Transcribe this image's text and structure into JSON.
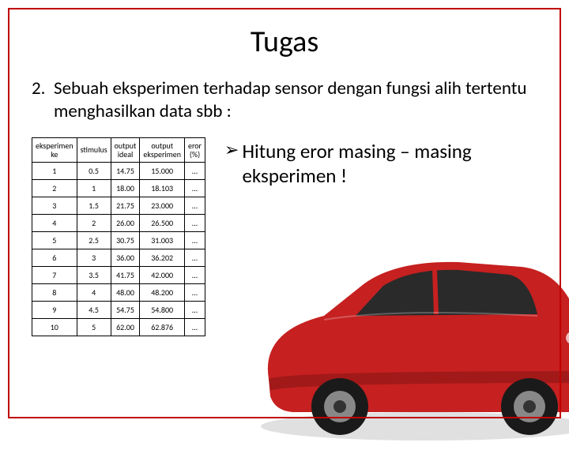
{
  "title": "Tugas",
  "question_number": "2.",
  "question_text": "Sebuah eksperimen terhadap sensor dengan fungsi alih tertentu menghasilkan data sbb :",
  "instruction": "Hitung eror masing – masing eksperimen !",
  "table": {
    "columns": [
      "eksperimen ke",
      "stimulus",
      "output ideal",
      "output eksperimen",
      "eror (%)"
    ],
    "rows": [
      [
        "1",
        "0.5",
        "14.75",
        "15.000",
        "…"
      ],
      [
        "2",
        "1",
        "18.00",
        "18.103",
        "…"
      ],
      [
        "3",
        "1.5",
        "21.75",
        "23.000",
        "…"
      ],
      [
        "4",
        "2",
        "26.00",
        "26.500",
        "…"
      ],
      [
        "5",
        "2.5",
        "30.75",
        "31.003",
        "…"
      ],
      [
        "6",
        "3",
        "36.00",
        "36.202",
        "…"
      ],
      [
        "7",
        "3.5",
        "41.75",
        "42.000",
        "…"
      ],
      [
        "8",
        "4",
        "48.00",
        "48.200",
        "…"
      ],
      [
        "9",
        "4.5",
        "54.75",
        "54.800",
        "…"
      ],
      [
        "10",
        "5",
        "62.00",
        "62.876",
        "…"
      ]
    ]
  },
  "colors": {
    "frame_border": "#c00000",
    "car_body": "#c62020",
    "car_dark": "#8a1515",
    "car_window": "#2a2a2a",
    "car_wheel": "#1a1a1a",
    "car_rim": "#888888",
    "text": "#000000",
    "background": "#ffffff"
  }
}
